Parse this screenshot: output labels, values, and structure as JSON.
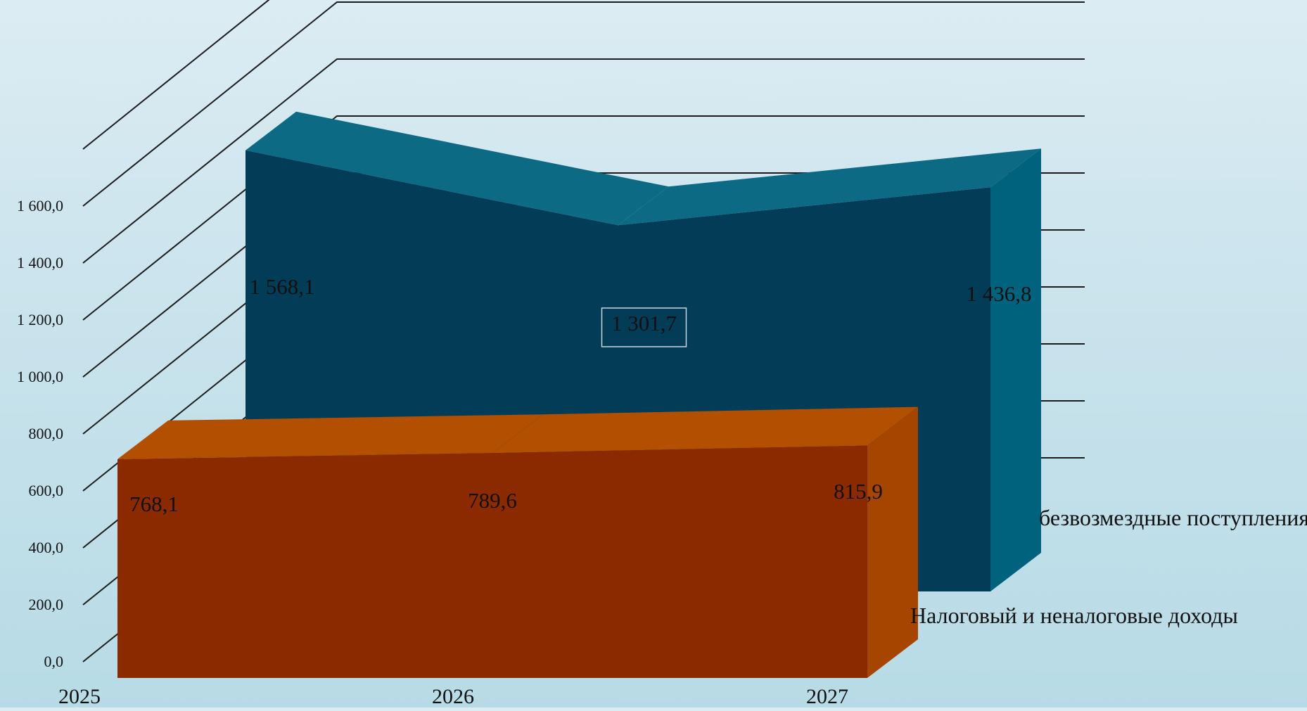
{
  "chart_data": {
    "type": "area",
    "three_d": true,
    "categories": [
      "2025",
      "2026",
      "2027"
    ],
    "y_ticks": [
      "0,0",
      "200,0",
      "400,0",
      "600,0",
      "800,0",
      "1 000,0",
      "1 200,0",
      "1 400,0",
      "1 600,0"
    ],
    "ylim": [
      0,
      1600
    ],
    "series": [
      {
        "name": "Налоговый и неналоговые доходы",
        "values": [
          768.1,
          789.6,
          815.9
        ],
        "labels": [
          "768,1",
          "789,6",
          "815,9"
        ],
        "color_front": "#8b2a00",
        "color_top": "#b24f00",
        "color_side": "#a64500"
      },
      {
        "name": "безвозмездные поступления",
        "values": [
          1568.1,
          1301.7,
          1436.8
        ],
        "labels": [
          "1 568,1",
          "1 301,7",
          "1 436,8"
        ],
        "color_front": "#033c57",
        "color_top": "#0c6a84",
        "color_side": "#00627d"
      }
    ],
    "grid": true
  }
}
